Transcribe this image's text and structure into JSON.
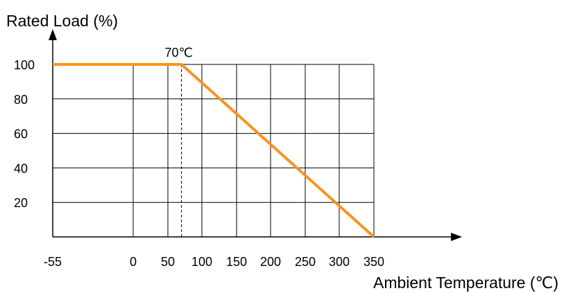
{
  "chart_data": {
    "type": "line",
    "ylabel": "Rated Load (%)",
    "xlabel": "Ambient Temperature (℃)",
    "x_ticks": [
      "-55",
      "0",
      "50",
      "100",
      "150",
      "200",
      "250",
      "300",
      "350"
    ],
    "y_ticks": [
      "20",
      "40",
      "60",
      "80",
      "100"
    ],
    "xlim": [
      -55,
      350
    ],
    "ylim": [
      0,
      100
    ],
    "grid": true,
    "series": [
      {
        "x": [
          -55,
          70,
          350
        ],
        "y": [
          100,
          100,
          0
        ]
      }
    ],
    "annotations": [
      {
        "text": "70℃",
        "x": 70,
        "y": 100
      }
    ],
    "colors": {
      "series": "#F7941D",
      "grid": "#000000",
      "annotation_line": "#000000"
    }
  }
}
